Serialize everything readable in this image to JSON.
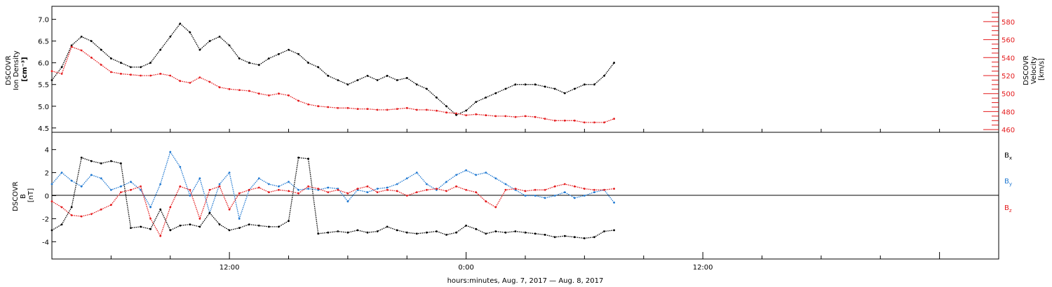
{
  "colors": {
    "black": "#000000",
    "red": "#e41a1c",
    "blue": "#1f78d1"
  },
  "footer": {
    "label": "hours:minutes, Aug.  7, 2017 — Aug.  8, 2017"
  },
  "chart_data": [
    {
      "type": "scatter",
      "panel": "top",
      "ylabel_lines": [
        "DSCOVR",
        "Ion Density",
        "[cm⁻³]"
      ],
      "y2label_lines": [
        "DSCOVR",
        "Velocity",
        "[km/s]"
      ],
      "xlim_hours": [
        3,
        51
      ],
      "ylim": [
        4.4,
        7.3
      ],
      "y2lim": [
        457,
        597
      ],
      "yticks": [
        4.5,
        5.0,
        5.5,
        6.0,
        6.5,
        7.0
      ],
      "yticklabels": [
        "4.5",
        "5.0",
        "5.5",
        "6.0",
        "6.5",
        "7.0"
      ],
      "y2ticks": [
        460,
        480,
        500,
        520,
        540,
        560,
        580
      ],
      "y2ticklabels": [
        "460",
        "480",
        "500",
        "520",
        "540",
        "560",
        "580"
      ],
      "series": [
        {
          "color_key": "black",
          "axis": "left",
          "x": [
            3.0,
            3.5,
            4.0,
            4.5,
            5.0,
            5.5,
            6.0,
            6.5,
            7.0,
            7.5,
            8.0,
            8.5,
            9.0,
            9.5,
            10.0,
            10.5,
            11.0,
            11.5,
            12.0,
            12.5,
            13.0,
            13.5,
            14.0,
            14.5,
            15.0,
            15.5,
            16.0,
            16.5,
            17.0,
            17.5,
            18.0,
            18.5,
            19.0,
            19.5,
            20.0,
            20.5,
            21.0,
            21.5,
            22.0,
            22.5,
            23.0,
            23.5,
            24.0,
            24.5,
            25.0,
            25.5,
            26.0,
            26.5,
            27.0,
            27.5,
            28.0,
            28.5,
            29.0,
            29.5,
            30.0,
            30.5,
            31.0,
            31.5
          ],
          "y": [
            5.6,
            5.9,
            6.4,
            6.6,
            6.5,
            6.3,
            6.1,
            6.0,
            5.9,
            5.9,
            6.0,
            6.3,
            6.6,
            6.9,
            6.7,
            6.3,
            6.5,
            6.6,
            6.4,
            6.1,
            6.0,
            5.95,
            6.1,
            6.2,
            6.3,
            6.2,
            6.0,
            5.9,
            5.7,
            5.6,
            5.5,
            5.6,
            5.7,
            5.6,
            5.7,
            5.6,
            5.65,
            5.5,
            5.4,
            5.2,
            5.0,
            4.8,
            4.9,
            5.1,
            5.2,
            5.3,
            5.4,
            5.5,
            5.5,
            5.5,
            5.45,
            5.4,
            5.3,
            5.4,
            5.5,
            5.5,
            5.7,
            6.0
          ]
        },
        {
          "color_key": "red",
          "axis": "right",
          "x": [
            3.0,
            3.5,
            4.0,
            4.5,
            5.0,
            5.5,
            6.0,
            6.5,
            7.0,
            7.5,
            8.0,
            8.5,
            9.0,
            9.5,
            10.0,
            10.5,
            11.0,
            11.5,
            12.0,
            12.5,
            13.0,
            13.5,
            14.0,
            14.5,
            15.0,
            15.5,
            16.0,
            16.5,
            17.0,
            17.5,
            18.0,
            18.5,
            19.0,
            19.5,
            20.0,
            20.5,
            21.0,
            21.5,
            22.0,
            22.5,
            23.0,
            23.5,
            24.0,
            24.5,
            25.0,
            25.5,
            26.0,
            26.5,
            27.0,
            27.5,
            28.0,
            28.5,
            29.0,
            29.5,
            30.0,
            30.5,
            31.0,
            31.5
          ],
          "y": [
            525,
            522,
            552,
            548,
            540,
            532,
            524,
            522,
            521,
            520,
            520,
            522,
            520,
            514,
            512,
            518,
            513,
            507,
            505,
            504,
            503,
            500,
            498,
            500,
            498,
            492,
            488,
            486,
            485,
            484,
            484,
            483,
            483,
            482,
            482,
            483,
            484,
            482,
            482,
            481,
            479,
            478,
            476,
            477,
            476,
            475,
            475,
            474,
            475,
            474,
            472,
            470,
            470,
            470,
            468,
            468,
            468,
            472
          ]
        }
      ]
    },
    {
      "type": "scatter",
      "panel": "bottom",
      "ylabel_lines": [
        "DSCOVR",
        "B",
        "[nT]"
      ],
      "xlim_hours": [
        3,
        51
      ],
      "ylim": [
        -5.5,
        5.5
      ],
      "yticks": [
        -4,
        -2,
        0,
        2,
        4
      ],
      "yticklabels": [
        "-4",
        "-2",
        "0",
        "2",
        "4"
      ],
      "xticks_hours": [
        12,
        24,
        36
      ],
      "xticklabels": [
        "12:00",
        "0:00",
        "12:00"
      ],
      "legend": [
        {
          "label": "B",
          "sub": "x",
          "color_key": "black"
        },
        {
          "label": "B",
          "sub": "y",
          "color_key": "blue"
        },
        {
          "label": "B",
          "sub": "z",
          "color_key": "red"
        }
      ],
      "series": [
        {
          "name": "Bx",
          "color_key": "black",
          "x": [
            3.0,
            3.5,
            4.0,
            4.5,
            5.0,
            5.5,
            6.0,
            6.5,
            7.0,
            7.5,
            8.0,
            8.5,
            9.0,
            9.5,
            10.0,
            10.5,
            11.0,
            11.5,
            12.0,
            12.5,
            13.0,
            13.5,
            14.0,
            14.5,
            15.0,
            15.5,
            16.0,
            16.5,
            17.0,
            17.5,
            18.0,
            18.5,
            19.0,
            19.5,
            20.0,
            20.5,
            21.0,
            21.5,
            22.0,
            22.5,
            23.0,
            23.5,
            24.0,
            24.5,
            25.0,
            25.5,
            26.0,
            26.5,
            27.0,
            27.5,
            28.0,
            28.5,
            29.0,
            29.5,
            30.0,
            30.5,
            31.0,
            31.5
          ],
          "y": [
            -3.0,
            -2.5,
            -1.0,
            3.3,
            3.0,
            2.8,
            3.0,
            2.8,
            -2.8,
            -2.7,
            -2.9,
            -1.2,
            -3.0,
            -2.6,
            -2.5,
            -2.7,
            -1.5,
            -2.5,
            -3.0,
            -2.8,
            -2.5,
            -2.6,
            -2.7,
            -2.7,
            -2.2,
            3.3,
            3.2,
            -3.3,
            -3.2,
            -3.1,
            -3.2,
            -3.0,
            -3.2,
            -3.1,
            -2.7,
            -3.0,
            -3.2,
            -3.3,
            -3.2,
            -3.1,
            -3.4,
            -3.2,
            -2.6,
            -2.9,
            -3.3,
            -3.1,
            -3.2,
            -3.1,
            -3.2,
            -3.3,
            -3.4,
            -3.6,
            -3.5,
            -3.6,
            -3.7,
            -3.6,
            -3.1,
            -3.0
          ]
        },
        {
          "name": "By",
          "color_key": "blue",
          "x": [
            3.0,
            3.5,
            4.0,
            4.5,
            5.0,
            5.5,
            6.0,
            6.5,
            7.0,
            7.5,
            8.0,
            8.5,
            9.0,
            9.5,
            10.0,
            10.5,
            11.0,
            11.5,
            12.0,
            12.5,
            13.0,
            13.5,
            14.0,
            14.5,
            15.0,
            15.5,
            16.0,
            16.5,
            17.0,
            17.5,
            18.0,
            18.5,
            19.0,
            19.5,
            20.0,
            20.5,
            21.0,
            21.5,
            22.0,
            22.5,
            23.0,
            23.5,
            24.0,
            24.5,
            25.0,
            25.5,
            26.0,
            26.5,
            27.0,
            27.5,
            28.0,
            28.5,
            29.0,
            29.5,
            30.0,
            30.5,
            31.0,
            31.5
          ],
          "y": [
            1.0,
            2.0,
            1.3,
            0.8,
            1.8,
            1.5,
            0.5,
            0.8,
            1.2,
            0.5,
            -1.0,
            1.0,
            3.8,
            2.5,
            0.0,
            1.5,
            -1.5,
            1.0,
            2.0,
            -2.0,
            0.5,
            1.5,
            1.0,
            0.8,
            1.2,
            0.5,
            0.6,
            0.5,
            0.7,
            0.6,
            -0.5,
            0.5,
            0.3,
            0.6,
            0.7,
            1.0,
            1.5,
            2.0,
            1.0,
            0.5,
            1.2,
            1.8,
            2.2,
            1.8,
            2.0,
            1.5,
            1.0,
            0.5,
            0.0,
            0.0,
            -0.2,
            0.0,
            0.3,
            -0.2,
            0.0,
            0.3,
            0.5,
            -0.6
          ]
        },
        {
          "name": "Bz",
          "color_key": "red",
          "x": [
            3.0,
            3.5,
            4.0,
            4.5,
            5.0,
            5.5,
            6.0,
            6.5,
            7.0,
            7.5,
            8.0,
            8.5,
            9.0,
            9.5,
            10.0,
            10.5,
            11.0,
            11.5,
            12.0,
            12.5,
            13.0,
            13.5,
            14.0,
            14.5,
            15.0,
            15.5,
            16.0,
            16.5,
            17.0,
            17.5,
            18.0,
            18.5,
            19.0,
            19.5,
            20.0,
            20.5,
            21.0,
            21.5,
            22.0,
            22.5,
            23.0,
            23.5,
            24.0,
            24.5,
            25.0,
            25.5,
            26.0,
            26.5,
            27.0,
            27.5,
            28.0,
            28.5,
            29.0,
            29.5,
            30.0,
            30.5,
            31.0,
            31.5
          ],
          "y": [
            -0.5,
            -1.0,
            -1.7,
            -1.8,
            -1.6,
            -1.2,
            -0.8,
            0.3,
            0.5,
            0.8,
            -2.0,
            -3.5,
            -1.0,
            0.8,
            0.5,
            -2.0,
            0.5,
            0.8,
            -1.2,
            0.2,
            0.5,
            0.7,
            0.3,
            0.5,
            0.4,
            0.2,
            0.8,
            0.6,
            0.3,
            0.5,
            0.2,
            0.6,
            0.8,
            0.3,
            0.5,
            0.4,
            0.0,
            0.3,
            0.5,
            0.6,
            0.4,
            0.8,
            0.5,
            0.3,
            -0.5,
            -1.0,
            0.5,
            0.6,
            0.4,
            0.5,
            0.5,
            0.8,
            1.0,
            0.8,
            0.6,
            0.5,
            0.5,
            0.6
          ]
        }
      ]
    }
  ]
}
